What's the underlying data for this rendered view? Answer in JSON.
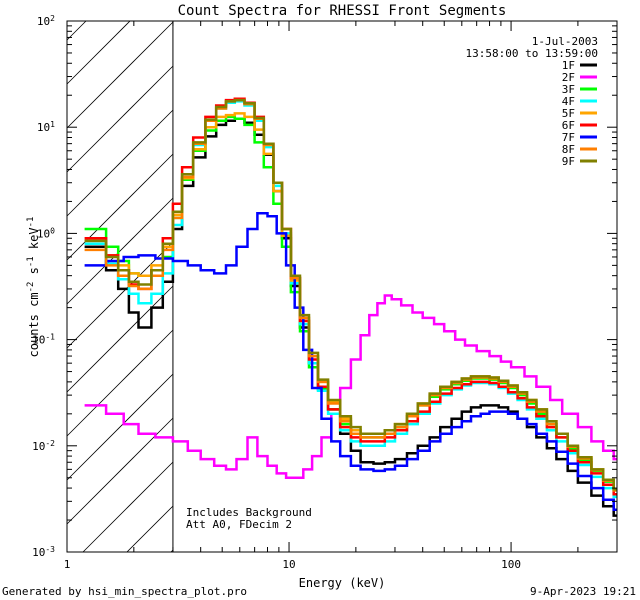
{
  "chart_data": {
    "type": "line",
    "title": "Count Spectra for RHESSI Front Segments",
    "xlabel": "Energy (keV)",
    "ylabel_parts": [
      "counts cm",
      "-2",
      " s",
      "-1",
      " keV",
      "-1"
    ],
    "xscale": "log",
    "yscale": "log",
    "xlim": [
      1,
      300
    ],
    "ylim": [
      0.001,
      100
    ],
    "x_ticks": [
      {
        "v": 1,
        "label": "1"
      },
      {
        "v": 10,
        "label": "10"
      },
      {
        "v": 100,
        "label": "100"
      }
    ],
    "y_ticks": [
      {
        "v": 0.001,
        "base": "10",
        "exp": "-3"
      },
      {
        "v": 0.01,
        "base": "10",
        "exp": "-2"
      },
      {
        "v": 0.1,
        "base": "10",
        "exp": "-1"
      },
      {
        "v": 1,
        "base": "10",
        "exp": "0"
      },
      {
        "v": 10,
        "base": "10",
        "exp": "1"
      },
      {
        "v": 100,
        "base": "10",
        "exp": "2"
      }
    ],
    "hatched_region": [
      1,
      3
    ],
    "date": "1-Jul-2003",
    "time_range": "13:58:00 to 13:59:00",
    "notes": [
      "Includes Background",
      "Att A0, FDecim 2"
    ],
    "series": [
      {
        "name": "1F",
        "color": "#000000",
        "x": [
          1.2,
          1.5,
          1.7,
          1.9,
          2.1,
          2.4,
          2.7,
          3.0,
          3.3,
          3.7,
          4.2,
          4.7,
          5.2,
          5.7,
          6.3,
          7.0,
          7.7,
          8.5,
          9.3,
          10.2,
          11.2,
          12.3,
          13.5,
          15.0,
          17.0,
          19.0,
          21.0,
          24.0,
          27.0,
          30.0,
          34.0,
          38.0,
          43.0,
          48.0,
          54.0,
          60.0,
          66.0,
          73.0,
          80.0,
          88.0,
          97.0,
          107.0,
          118.0,
          130.0,
          145.0,
          160.0,
          180.0,
          200.0,
          230.0,
          260.0,
          290.0
        ],
        "y": [
          0.75,
          0.45,
          0.3,
          0.18,
          0.13,
          0.2,
          0.35,
          1.1,
          2.8,
          5.2,
          8.2,
          10.5,
          11.5,
          12.0,
          11.0,
          8.5,
          5.5,
          2.5,
          0.9,
          0.32,
          0.13,
          0.06,
          0.035,
          0.022,
          0.013,
          0.009,
          0.007,
          0.0068,
          0.007,
          0.0075,
          0.0085,
          0.01,
          0.012,
          0.015,
          0.018,
          0.021,
          0.023,
          0.024,
          0.024,
          0.023,
          0.021,
          0.018,
          0.015,
          0.012,
          0.0095,
          0.0075,
          0.0058,
          0.0045,
          0.0034,
          0.0027,
          0.0022
        ]
      },
      {
        "name": "2F",
        "color": "#ff00ff",
        "x": [
          1.2,
          1.5,
          1.8,
          2.1,
          2.5,
          3.0,
          3.5,
          4.0,
          4.6,
          5.2,
          5.8,
          6.5,
          7.2,
          8.0,
          8.8,
          9.7,
          10.6,
          11.6,
          12.7,
          14.0,
          15.5,
          17.0,
          19.0,
          21.0,
          23.0,
          25.0,
          27.0,
          29.0,
          32.0,
          36.0,
          40.0,
          45.0,
          50.0,
          56.0,
          62.0,
          70.0,
          80.0,
          90.0,
          100.0,
          115.0,
          130.0,
          150.0,
          170.0,
          200.0,
          230.0,
          260.0,
          290.0
        ],
        "y": [
          0.024,
          0.02,
          0.016,
          0.013,
          0.012,
          0.011,
          0.009,
          0.0075,
          0.0065,
          0.006,
          0.0075,
          0.012,
          0.008,
          0.0065,
          0.0055,
          0.005,
          0.005,
          0.006,
          0.008,
          0.012,
          0.02,
          0.035,
          0.065,
          0.11,
          0.17,
          0.22,
          0.26,
          0.24,
          0.21,
          0.18,
          0.16,
          0.14,
          0.12,
          0.1,
          0.088,
          0.078,
          0.07,
          0.062,
          0.055,
          0.045,
          0.036,
          0.027,
          0.02,
          0.015,
          0.011,
          0.009,
          0.0075
        ]
      },
      {
        "name": "3F",
        "color": "#00ff00",
        "x": [
          1.2,
          1.5,
          1.7,
          1.9,
          2.1,
          2.4,
          2.7,
          3.0,
          3.3,
          3.7,
          4.2,
          4.7,
          5.2,
          5.7,
          6.3,
          7.0,
          7.7,
          8.5,
          9.3,
          10.2,
          11.2,
          12.3,
          13.5,
          15.0,
          17.0,
          19.0,
          21.0,
          24.0,
          27.0,
          30.0,
          34.0,
          38.0,
          43.0,
          48.0,
          54.0,
          60.0,
          66.0,
          73.0,
          80.0,
          88.0,
          97.0,
          107.0,
          118.0,
          130.0,
          145.0,
          160.0,
          180.0,
          200.0,
          230.0,
          260.0,
          290.0
        ],
        "y": [
          1.1,
          0.75,
          0.55,
          0.42,
          0.4,
          0.45,
          0.6,
          1.4,
          3.2,
          6.0,
          9.3,
          11.5,
          12.5,
          12.0,
          10.5,
          7.2,
          4.2,
          1.9,
          0.75,
          0.28,
          0.12,
          0.055,
          0.034,
          0.022,
          0.016,
          0.013,
          0.012,
          0.012,
          0.013,
          0.015,
          0.019,
          0.024,
          0.029,
          0.034,
          0.038,
          0.041,
          0.043,
          0.043,
          0.042,
          0.039,
          0.035,
          0.03,
          0.025,
          0.02,
          0.016,
          0.012,
          0.0095,
          0.0074,
          0.0058,
          0.0046,
          0.0038
        ]
      },
      {
        "name": "4F",
        "color": "#00ffff",
        "x": [
          1.2,
          1.5,
          1.7,
          1.9,
          2.1,
          2.4,
          2.7,
          3.0,
          3.3,
          3.7,
          4.2,
          4.7,
          5.2,
          5.7,
          6.3,
          7.0,
          7.7,
          8.5,
          9.3,
          10.2,
          11.2,
          12.3,
          13.5,
          15.0,
          17.0,
          19.0,
          21.0,
          24.0,
          27.0,
          30.0,
          34.0,
          38.0,
          43.0,
          48.0,
          54.0,
          60.0,
          66.0,
          73.0,
          80.0,
          88.0,
          97.0,
          107.0,
          118.0,
          130.0,
          145.0,
          160.0,
          180.0,
          200.0,
          230.0,
          260.0,
          290.0
        ],
        "y": [
          0.8,
          0.52,
          0.37,
          0.27,
          0.22,
          0.27,
          0.42,
          1.2,
          3.3,
          6.8,
          11.5,
          15.0,
          17.0,
          17.5,
          16.0,
          11.5,
          6.5,
          2.8,
          1.0,
          0.34,
          0.14,
          0.06,
          0.033,
          0.02,
          0.014,
          0.011,
          0.01,
          0.01,
          0.011,
          0.013,
          0.016,
          0.02,
          0.025,
          0.03,
          0.034,
          0.037,
          0.039,
          0.039,
          0.038,
          0.035,
          0.031,
          0.027,
          0.022,
          0.018,
          0.014,
          0.011,
          0.0085,
          0.0066,
          0.0051,
          0.004,
          0.0033
        ]
      },
      {
        "name": "5F",
        "color": "#ffa500",
        "x": [
          1.2,
          1.5,
          1.7,
          1.9,
          2.1,
          2.4,
          2.7,
          3.0,
          3.3,
          3.7,
          4.2,
          4.7,
          5.2,
          5.7,
          6.3,
          7.0,
          7.7,
          8.5,
          9.3,
          10.2,
          11.2,
          12.3,
          13.5,
          15.0,
          17.0,
          19.0,
          21.0,
          24.0,
          27.0,
          30.0,
          34.0,
          38.0,
          43.0,
          48.0,
          54.0,
          60.0,
          66.0,
          73.0,
          80.0,
          88.0,
          97.0,
          107.0,
          118.0,
          130.0,
          145.0,
          160.0,
          180.0,
          200.0,
          230.0,
          260.0,
          290.0
        ],
        "y": [
          0.85,
          0.62,
          0.5,
          0.42,
          0.4,
          0.5,
          0.75,
          1.5,
          3.3,
          6.2,
          10.0,
          12.5,
          13.0,
          13.5,
          12.5,
          9.5,
          5.6,
          2.5,
          0.95,
          0.36,
          0.15,
          0.07,
          0.04,
          0.026,
          0.018,
          0.014,
          0.013,
          0.013,
          0.014,
          0.016,
          0.02,
          0.025,
          0.031,
          0.036,
          0.04,
          0.043,
          0.045,
          0.045,
          0.044,
          0.041,
          0.037,
          0.032,
          0.027,
          0.022,
          0.017,
          0.013,
          0.01,
          0.0078,
          0.006,
          0.0048,
          0.0039
        ]
      },
      {
        "name": "6F",
        "color": "#ff0000",
        "x": [
          1.2,
          1.5,
          1.7,
          1.9,
          2.1,
          2.4,
          2.7,
          3.0,
          3.3,
          3.7,
          4.2,
          4.7,
          5.2,
          5.7,
          6.3,
          7.0,
          7.7,
          8.5,
          9.3,
          10.2,
          11.2,
          12.3,
          13.5,
          15.0,
          17.0,
          19.0,
          21.0,
          24.0,
          27.0,
          30.0,
          34.0,
          38.0,
          43.0,
          48.0,
          54.0,
          60.0,
          66.0,
          73.0,
          80.0,
          88.0,
          97.0,
          107.0,
          118.0,
          130.0,
          145.0,
          160.0,
          180.0,
          200.0,
          230.0,
          260.0,
          290.0
        ],
        "y": [
          0.9,
          0.62,
          0.45,
          0.33,
          0.3,
          0.45,
          0.9,
          1.9,
          4.2,
          8.0,
          12.5,
          16.0,
          18.0,
          18.5,
          17.0,
          12.5,
          7.0,
          3.0,
          1.1,
          0.38,
          0.15,
          0.065,
          0.036,
          0.022,
          0.015,
          0.012,
          0.011,
          0.011,
          0.012,
          0.014,
          0.017,
          0.021,
          0.026,
          0.031,
          0.035,
          0.038,
          0.04,
          0.04,
          0.039,
          0.036,
          0.032,
          0.028,
          0.023,
          0.019,
          0.015,
          0.012,
          0.009,
          0.007,
          0.0055,
          0.0043,
          0.0035
        ]
      },
      {
        "name": "7F",
        "color": "#0000ff",
        "x": [
          1.2,
          1.5,
          1.8,
          2.1,
          2.5,
          3.0,
          3.5,
          4.0,
          4.6,
          5.2,
          5.8,
          6.5,
          7.2,
          8.0,
          8.8,
          9.7,
          10.6,
          11.6,
          12.7,
          14.0,
          15.5,
          17.0,
          19.0,
          21.0,
          24.0,
          27.0,
          30.0,
          34.0,
          38.0,
          43.0,
          48.0,
          54.0,
          60.0,
          66.0,
          73.0,
          80.0,
          88.0,
          97.0,
          107.0,
          118.0,
          130.0,
          145.0,
          160.0,
          180.0,
          200.0,
          230.0,
          260.0,
          290.0
        ],
        "y": [
          0.5,
          0.55,
          0.6,
          0.62,
          0.58,
          0.55,
          0.5,
          0.45,
          0.42,
          0.5,
          0.75,
          1.1,
          1.55,
          1.45,
          1.0,
          0.5,
          0.2,
          0.08,
          0.035,
          0.018,
          0.011,
          0.008,
          0.0065,
          0.006,
          0.0058,
          0.006,
          0.0065,
          0.0075,
          0.009,
          0.011,
          0.013,
          0.015,
          0.017,
          0.019,
          0.02,
          0.021,
          0.021,
          0.02,
          0.018,
          0.016,
          0.013,
          0.011,
          0.0088,
          0.0068,
          0.0052,
          0.004,
          0.0031,
          0.0025
        ]
      },
      {
        "name": "8F",
        "color": "#ff7f00",
        "x": [
          1.2,
          1.5,
          1.7,
          1.9,
          2.1,
          2.4,
          2.7,
          3.0,
          3.3,
          3.7,
          4.2,
          4.7,
          5.2,
          5.7,
          6.3,
          7.0,
          7.7,
          8.5,
          9.3,
          10.2,
          11.2,
          12.3,
          13.5,
          15.0,
          17.0,
          19.0,
          21.0,
          24.0,
          27.0,
          30.0,
          34.0,
          38.0,
          43.0,
          48.0,
          54.0,
          60.0,
          66.0,
          73.0,
          80.0,
          88.0,
          97.0,
          107.0,
          118.0,
          130.0,
          145.0,
          160.0,
          180.0,
          200.0,
          230.0,
          260.0,
          290.0
        ],
        "y": [
          0.7,
          0.5,
          0.4,
          0.32,
          0.3,
          0.4,
          0.7,
          1.4,
          3.4,
          7.0,
          11.5,
          15.0,
          17.5,
          18.0,
          16.5,
          12.0,
          6.8,
          3.0,
          1.1,
          0.38,
          0.16,
          0.07,
          0.04,
          0.025,
          0.017,
          0.013,
          0.012,
          0.012,
          0.013,
          0.015,
          0.019,
          0.024,
          0.03,
          0.035,
          0.039,
          0.042,
          0.044,
          0.044,
          0.043,
          0.04,
          0.036,
          0.031,
          0.026,
          0.021,
          0.016,
          0.013,
          0.0098,
          0.0076,
          0.0059,
          0.0047,
          0.0038
        ]
      },
      {
        "name": "9F",
        "color": "#808000",
        "x": [
          1.2,
          1.5,
          1.7,
          1.9,
          2.1,
          2.4,
          2.7,
          3.0,
          3.3,
          3.7,
          4.2,
          4.7,
          5.2,
          5.7,
          6.3,
          7.0,
          7.7,
          8.5,
          9.3,
          10.2,
          11.2,
          12.3,
          13.5,
          15.0,
          17.0,
          19.0,
          21.0,
          24.0,
          27.0,
          30.0,
          34.0,
          38.0,
          43.0,
          48.0,
          54.0,
          60.0,
          66.0,
          73.0,
          80.0,
          88.0,
          97.0,
          107.0,
          118.0,
          130.0,
          145.0,
          160.0,
          180.0,
          200.0,
          230.0,
          260.0,
          290.0
        ],
        "y": [
          0.85,
          0.6,
          0.45,
          0.35,
          0.33,
          0.45,
          0.8,
          1.6,
          3.6,
          7.2,
          11.8,
          15.5,
          17.5,
          18.0,
          16.8,
          12.2,
          7.0,
          3.0,
          1.1,
          0.4,
          0.17,
          0.075,
          0.042,
          0.027,
          0.019,
          0.015,
          0.013,
          0.013,
          0.014,
          0.016,
          0.02,
          0.025,
          0.031,
          0.036,
          0.04,
          0.043,
          0.045,
          0.045,
          0.044,
          0.041,
          0.037,
          0.032,
          0.027,
          0.022,
          0.017,
          0.013,
          0.01,
          0.0078,
          0.006,
          0.0048,
          0.0039
        ]
      }
    ]
  },
  "footer": {
    "generated_by": "Generated by hsi_min_spectra_plot.pro",
    "date": "9-Apr-2023 19:21"
  }
}
